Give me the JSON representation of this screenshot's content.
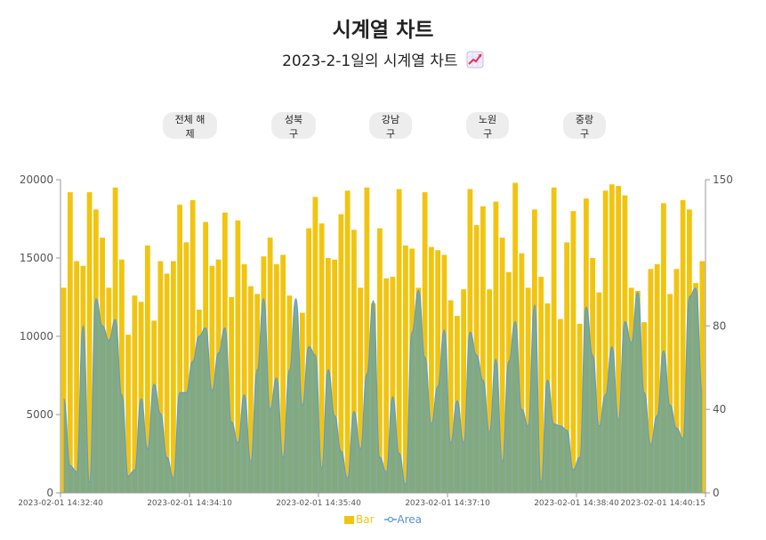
{
  "page": {
    "title": "시계열 차트",
    "subtitle": "2023-2-1일의 시계열 차트",
    "subtitle_icon": "chart-increasing-icon"
  },
  "filters": [
    {
      "label": "전체 해제"
    },
    {
      "label": "성북구"
    },
    {
      "label": "강남구"
    },
    {
      "label": "노원구"
    },
    {
      "label": "중랑구"
    }
  ],
  "colors": {
    "bar": "#f1c40f",
    "area_fill": "#7aa68a",
    "area_line": "#5b9bd5"
  },
  "chart_data": {
    "type": "bar",
    "title": "",
    "x_ticks": [
      "2023-02-01 14:32:40",
      "2023-02-01 14:34:10",
      "2023-02-01 14:35:40",
      "2023-02-01 14:37:10",
      "2023-02-01 14:38:40",
      "2023-02-01 14:40:15"
    ],
    "y_left": {
      "min": 0,
      "max": 20000,
      "ticks": [
        0,
        5000,
        10000,
        15000,
        20000
      ]
    },
    "y_right": {
      "min": 0,
      "max": 150,
      "ticks": [
        0,
        40,
        80,
        150
      ]
    },
    "grid": false,
    "legend_position": "bottom",
    "series": [
      {
        "name": "Bar",
        "type": "bar",
        "axis": "left",
        "values": [
          13100,
          19200,
          14800,
          14500,
          19200,
          18100,
          16300,
          13100,
          19500,
          14900,
          10100,
          12600,
          12200,
          15800,
          11000,
          14800,
          14000,
          14800,
          18400,
          16000,
          18700,
          11700,
          17300,
          14500,
          14900,
          17900,
          12500,
          17400,
          14600,
          13200,
          12700,
          15100,
          16300,
          14600,
          15200,
          12600,
          11300,
          11500,
          16900,
          18900,
          17200,
          15000,
          14900,
          17800,
          19300,
          16800,
          13100,
          19500,
          12100,
          16900,
          13700,
          13800,
          19400,
          15800,
          15600,
          13100,
          19200,
          15700,
          15500,
          15200,
          12300,
          11300,
          13000,
          19400,
          17100,
          18300,
          13000,
          18600,
          16300,
          14100,
          19800,
          15300,
          13100,
          18100,
          13800,
          12100,
          19500,
          11100,
          16000,
          18000,
          10800,
          18800,
          15000,
          12800,
          19300,
          19700,
          19600,
          19000,
          13100,
          12900,
          10900,
          14300,
          14600,
          18500,
          12700,
          14300,
          18700,
          18100,
          13400,
          14800
        ]
      },
      {
        "name": "Area",
        "type": "area",
        "axis": "right",
        "values": [
          45,
          13,
          10,
          80,
          5,
          93,
          80,
          73,
          83,
          47,
          8,
          11,
          45,
          21,
          52,
          38,
          17,
          7,
          48,
          48,
          63,
          75,
          79,
          49,
          67,
          79,
          34,
          24,
          47,
          15,
          59,
          93,
          40,
          55,
          17,
          59,
          93,
          42,
          70,
          66,
          12,
          59,
          37,
          20,
          7,
          39,
          21,
          57,
          92,
          17,
          10,
          46,
          19,
          4,
          77,
          97,
          65,
          33,
          51,
          78,
          24,
          44,
          24,
          77,
          66,
          54,
          29,
          64,
          15,
          63,
          82,
          40,
          32,
          90,
          5,
          54,
          33,
          32,
          30,
          11,
          17,
          89,
          66,
          32,
          47,
          70,
          35,
          82,
          72,
          96,
          48,
          23,
          37,
          68,
          42,
          31,
          26,
          94,
          98,
          49
        ]
      }
    ]
  }
}
